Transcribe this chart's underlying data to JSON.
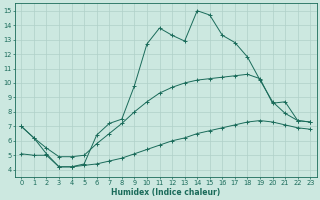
{
  "xlabel": "Humidex (Indice chaleur)",
  "bg_color": "#cce8e0",
  "line_color": "#1a6b5a",
  "grid_color": "#b0d0c8",
  "xlim": [
    -0.5,
    23.5
  ],
  "ylim": [
    3.5,
    15.5
  ],
  "yticks": [
    4,
    5,
    6,
    7,
    8,
    9,
    10,
    11,
    12,
    13,
    14,
    15
  ],
  "xticks": [
    0,
    1,
    2,
    3,
    4,
    5,
    6,
    7,
    8,
    9,
    10,
    11,
    12,
    13,
    14,
    15,
    16,
    17,
    18,
    19,
    20,
    21,
    22,
    23
  ],
  "curve1_x": [
    0,
    1,
    2,
    3,
    4,
    5,
    6,
    7,
    8,
    9,
    10,
    11,
    12,
    13,
    14,
    15,
    16,
    17,
    18,
    19,
    20,
    21,
    22,
    23
  ],
  "curve1_y": [
    7.0,
    6.2,
    5.1,
    4.2,
    4.2,
    4.4,
    6.4,
    7.2,
    7.5,
    9.8,
    12.7,
    13.8,
    13.3,
    12.9,
    15.0,
    14.7,
    13.3,
    12.8,
    11.8,
    10.2,
    8.7,
    7.9,
    7.4,
    7.3
  ],
  "curve2_x": [
    0,
    1,
    2,
    3,
    4,
    5,
    6,
    7,
    8,
    9,
    10,
    11,
    12,
    13,
    14,
    15,
    16,
    17,
    18,
    19,
    20,
    21,
    22,
    23
  ],
  "curve2_y": [
    7.0,
    6.2,
    5.5,
    4.9,
    4.9,
    5.0,
    5.8,
    6.5,
    7.2,
    8.0,
    8.7,
    9.3,
    9.7,
    10.0,
    10.2,
    10.3,
    10.4,
    10.5,
    10.6,
    10.3,
    8.6,
    8.7,
    7.4,
    7.3
  ],
  "curve3_x": [
    0,
    1,
    2,
    3,
    4,
    5,
    6,
    7,
    8,
    9,
    10,
    11,
    12,
    13,
    14,
    15,
    16,
    17,
    18,
    19,
    20,
    21,
    22,
    23
  ],
  "curve3_y": [
    5.1,
    5.0,
    5.0,
    4.2,
    4.2,
    4.3,
    4.4,
    4.6,
    4.8,
    5.1,
    5.4,
    5.7,
    6.0,
    6.2,
    6.5,
    6.7,
    6.9,
    7.1,
    7.3,
    7.4,
    7.3,
    7.1,
    6.9,
    6.8
  ],
  "xlabel_fontsize": 5.5,
  "tick_fontsize": 4.8,
  "linewidth": 0.7,
  "markersize": 2.5
}
